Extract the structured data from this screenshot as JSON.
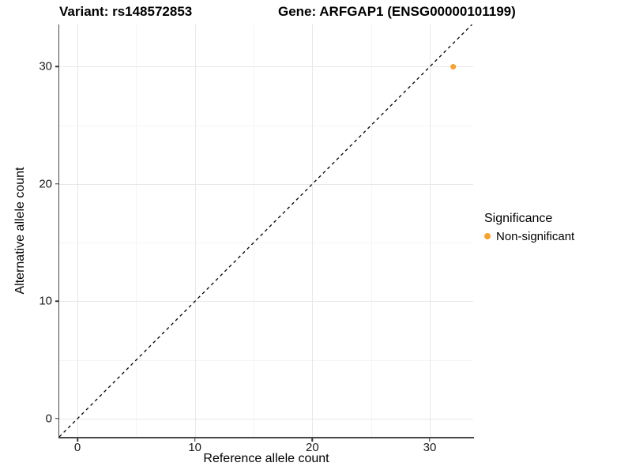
{
  "chart_data": {
    "type": "scatter",
    "title_left": "Variant: rs148572853",
    "title_right": "Gene: ARFGAP1 (ENSG00000101199)",
    "xlabel": "Reference allele count",
    "ylabel": "Alternative allele count",
    "xlim": [
      -1.55,
      33.7
    ],
    "ylim": [
      -1.55,
      33.6
    ],
    "x_ticks": [
      0,
      10,
      20,
      30
    ],
    "y_ticks": [
      0,
      10,
      20,
      30
    ],
    "x_minor_ticks": [
      5,
      15,
      25
    ],
    "y_minor_ticks": [
      5,
      15,
      25
    ],
    "grid": true,
    "points": [
      {
        "x": 32,
        "y": 30,
        "series": "Non-significant",
        "color": "#F8A12D"
      }
    ],
    "reference_line": {
      "type": "identity",
      "style": "dashed",
      "color": "#000000"
    },
    "legend": {
      "position": "right",
      "title": "Significance",
      "entries": [
        {
          "label": "Non-significant",
          "color": "#F8A12D"
        }
      ]
    },
    "colors": {
      "point": "#F8A12D",
      "grid_major": "#e8e8e8",
      "grid_minor": "#f4f4f4",
      "axis_line": "#474747",
      "background": "#ffffff"
    }
  }
}
